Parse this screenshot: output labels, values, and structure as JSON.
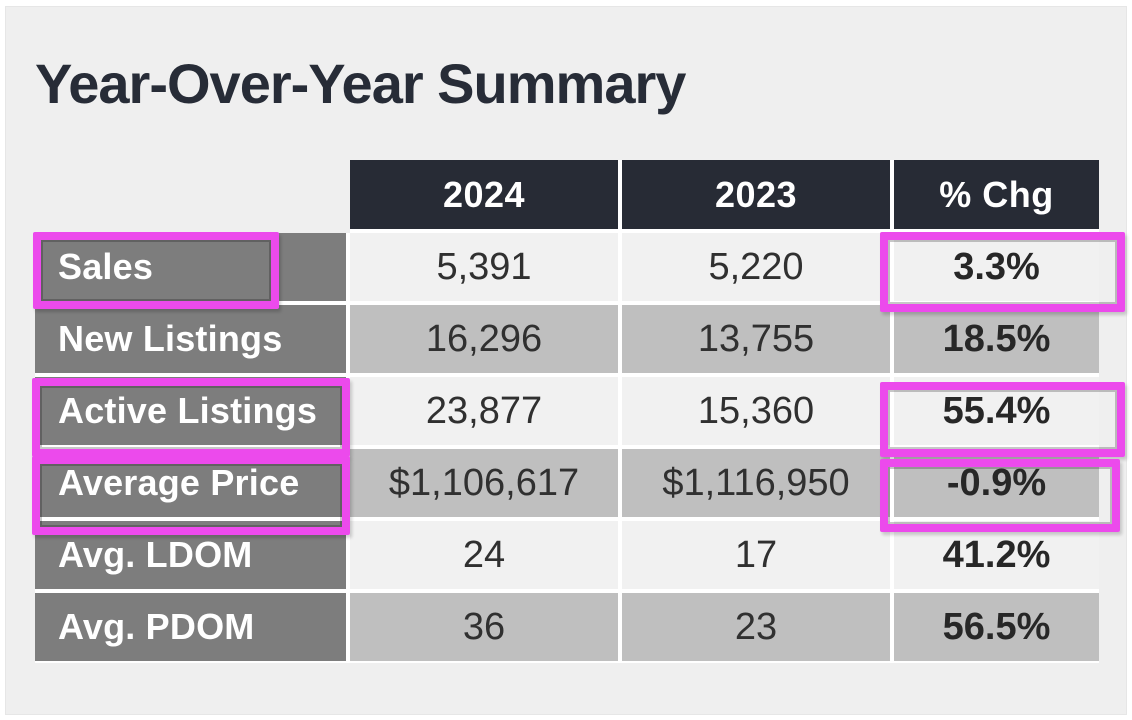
{
  "title": "Year-Over-Year Summary",
  "table": {
    "columns": [
      "2024",
      "2023",
      "% Chg"
    ],
    "rows": [
      {
        "label": "Sales",
        "v2024": "5,391",
        "v2023": "5,220",
        "chg": "3.3%",
        "label_highlighted": true,
        "chg_highlighted": true
      },
      {
        "label": "New Listings",
        "v2024": "16,296",
        "v2023": "13,755",
        "chg": "18.5%",
        "label_highlighted": false,
        "chg_highlighted": false
      },
      {
        "label": "Active Listings",
        "v2024": "23,877",
        "v2023": "15,360",
        "chg": "55.4%",
        "label_highlighted": true,
        "chg_highlighted": true
      },
      {
        "label": "Average Price",
        "v2024": "$1,106,617",
        "v2023": "$1,116,950",
        "chg": "-0.9%",
        "label_highlighted": true,
        "chg_highlighted": true
      },
      {
        "label": "Avg. LDOM",
        "v2024": "24",
        "v2023": "17",
        "chg": "41.2%",
        "label_highlighted": false,
        "chg_highlighted": false
      },
      {
        "label": "Avg. PDOM",
        "v2024": "36",
        "v2023": "23",
        "chg": "56.5%",
        "label_highlighted": false,
        "chg_highlighted": false
      }
    ]
  },
  "colors": {
    "header_bg": "#272b35",
    "label_bg": "#7d7d7d",
    "row_light": "#f1f1f1",
    "row_dark": "#bfbfbf",
    "panel_bg": "#efefef",
    "highlight": "#ec4aec",
    "title_color": "#272c37"
  }
}
